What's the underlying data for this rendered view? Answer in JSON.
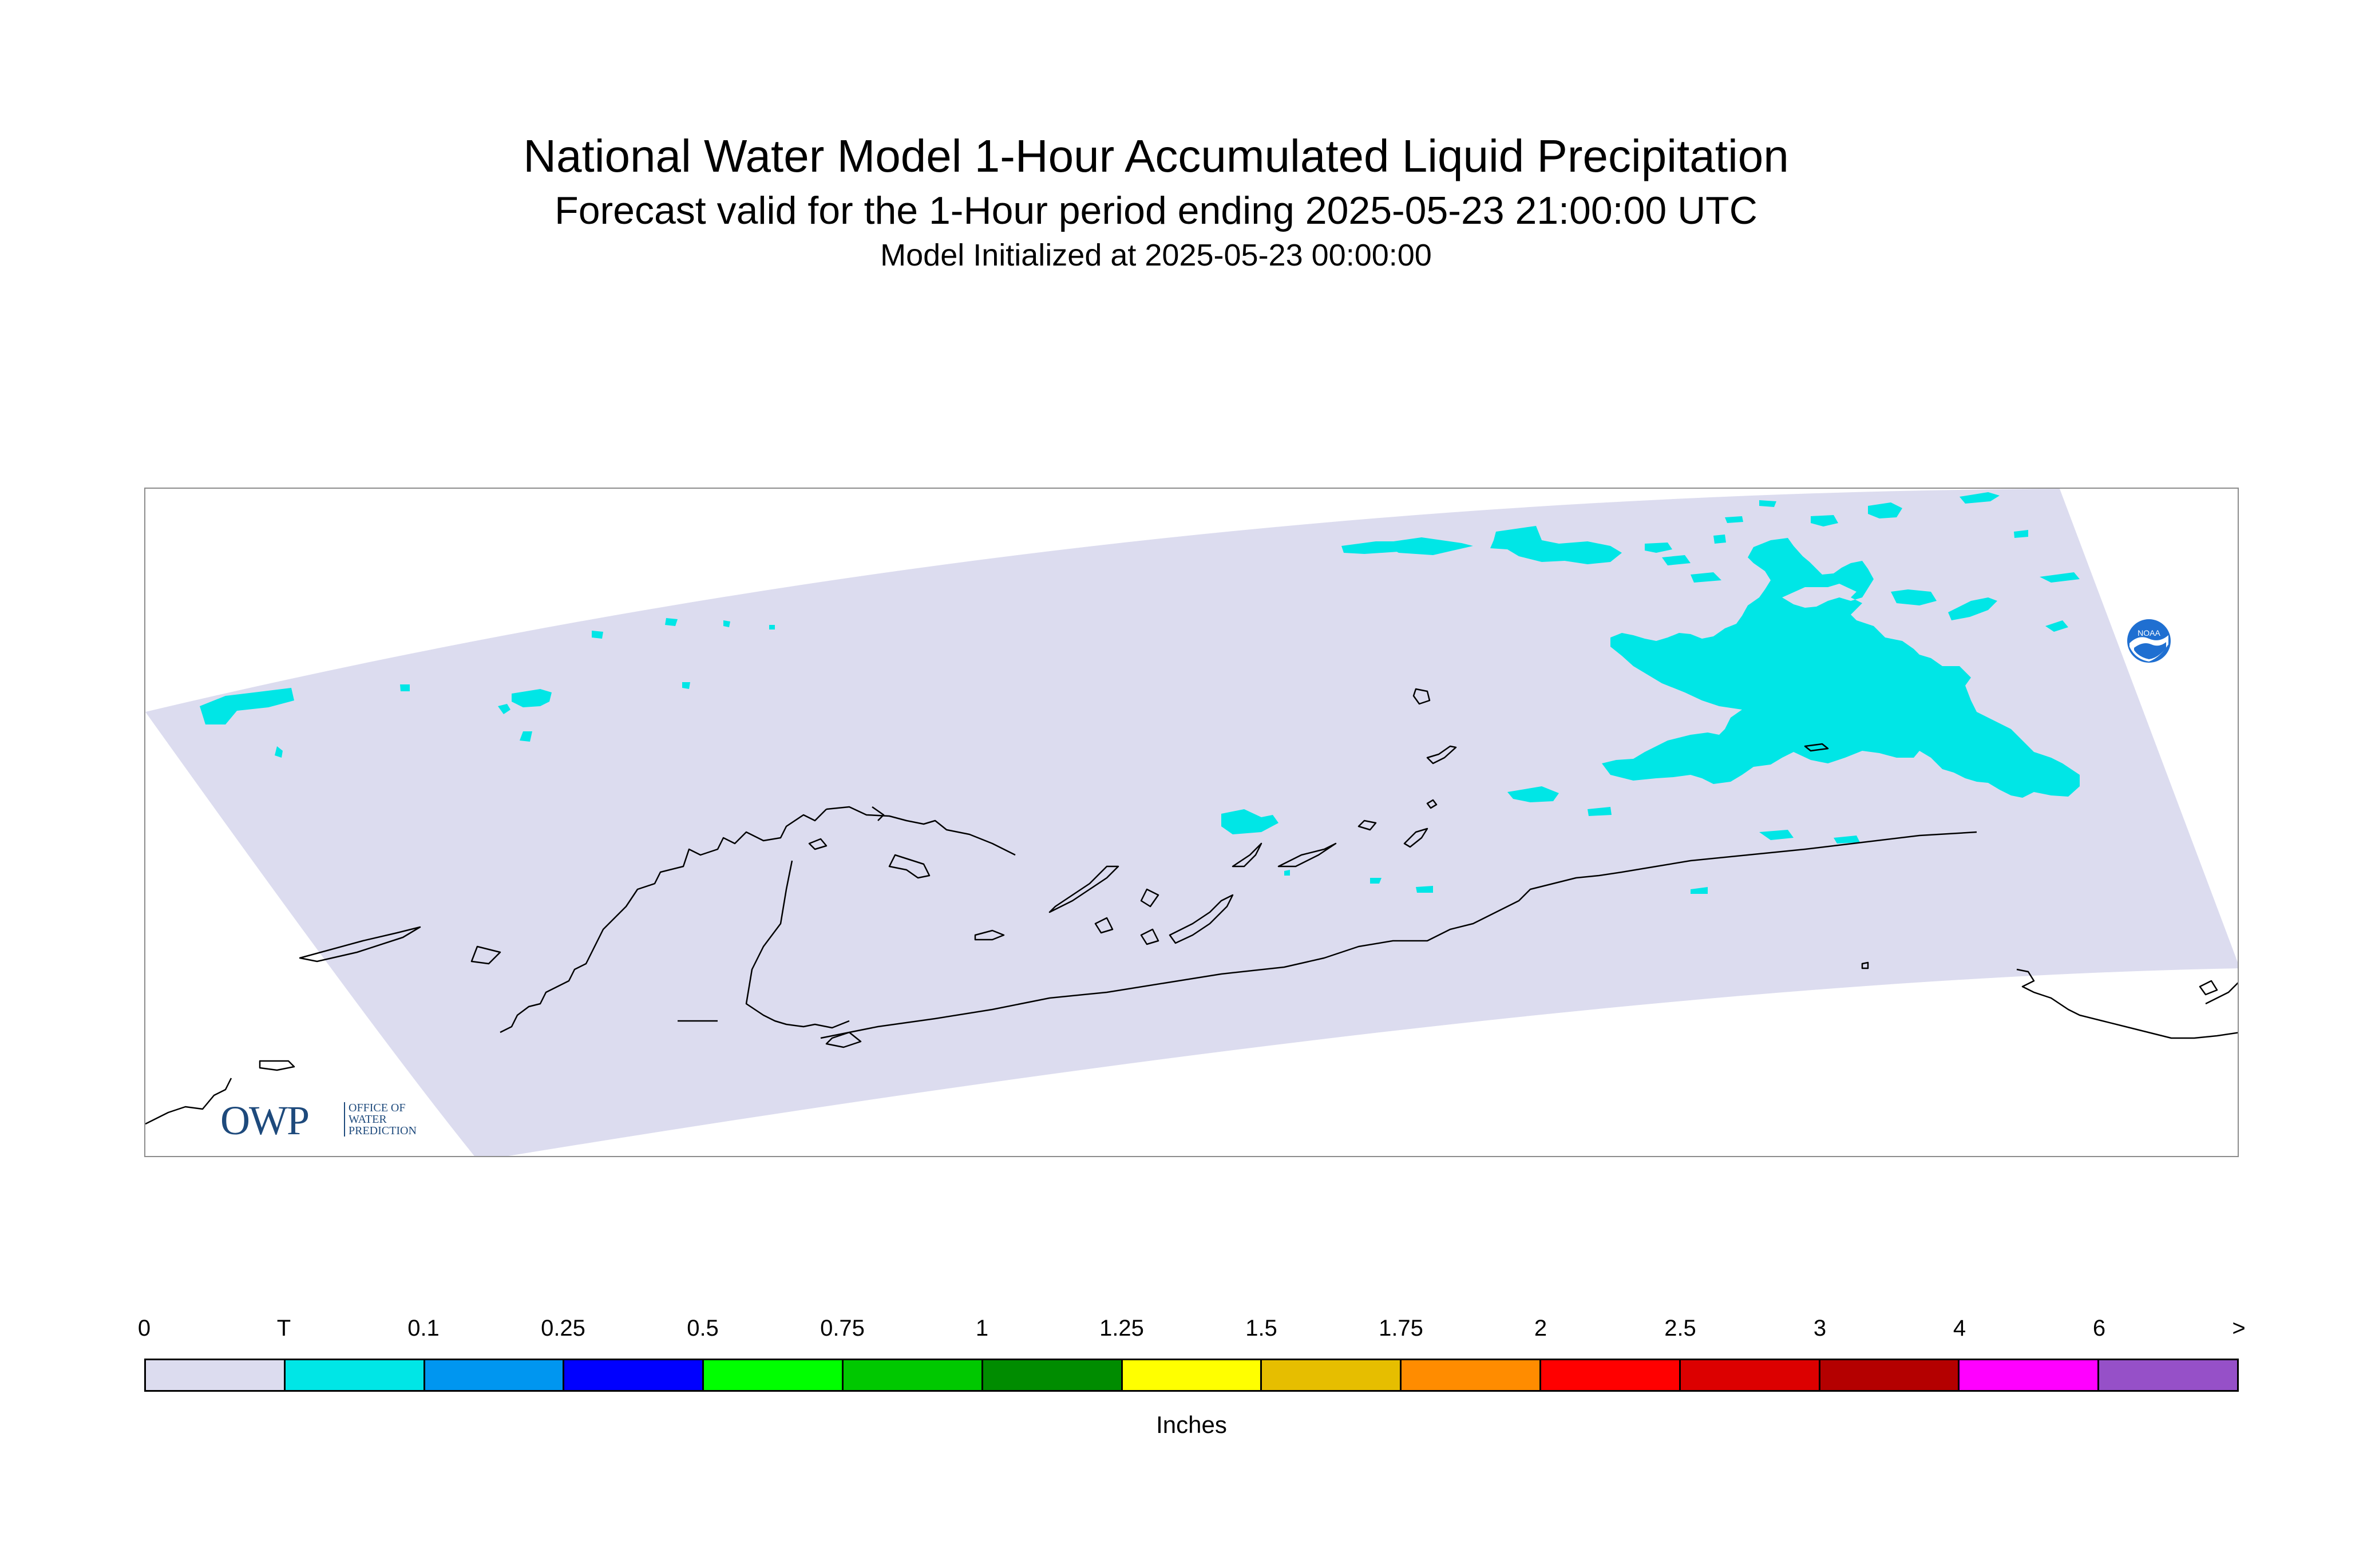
{
  "header": {
    "title": "National Water Model 1-Hour Accumulated Liquid Precipitation",
    "subtitle": "Forecast valid for the 1-Hour period ending 2025-05-23 21:00:00 UTC",
    "init": "Model Initialized at 2025-05-23 00:00:00"
  },
  "map": {
    "domain_fill_color": "#dcdcef",
    "precip_color": "#00e6e6",
    "coastline_color": "#000000"
  },
  "logos": {
    "owp": {
      "letters": "OWP",
      "line1": "OFFICE OF",
      "line2": "WATER",
      "line3": "PREDICTION"
    },
    "noaa": {
      "text": "NOAA"
    }
  },
  "legend": {
    "units": "Inches",
    "tick_labels": [
      "0",
      "T",
      "0.1",
      "0.25",
      "0.5",
      "0.75",
      "1",
      "1.25",
      "1.5",
      "1.75",
      "2",
      "2.5",
      "3",
      "4",
      "6",
      ">"
    ],
    "colors": [
      "#dcdcef",
      "#00e6e6",
      "#0096f0",
      "#0000ff",
      "#00ff00",
      "#00c800",
      "#008c00",
      "#ffff00",
      "#e6be00",
      "#ff8c00",
      "#ff0000",
      "#dc0000",
      "#b40000",
      "#ff00ff",
      "#9650c8"
    ]
  }
}
